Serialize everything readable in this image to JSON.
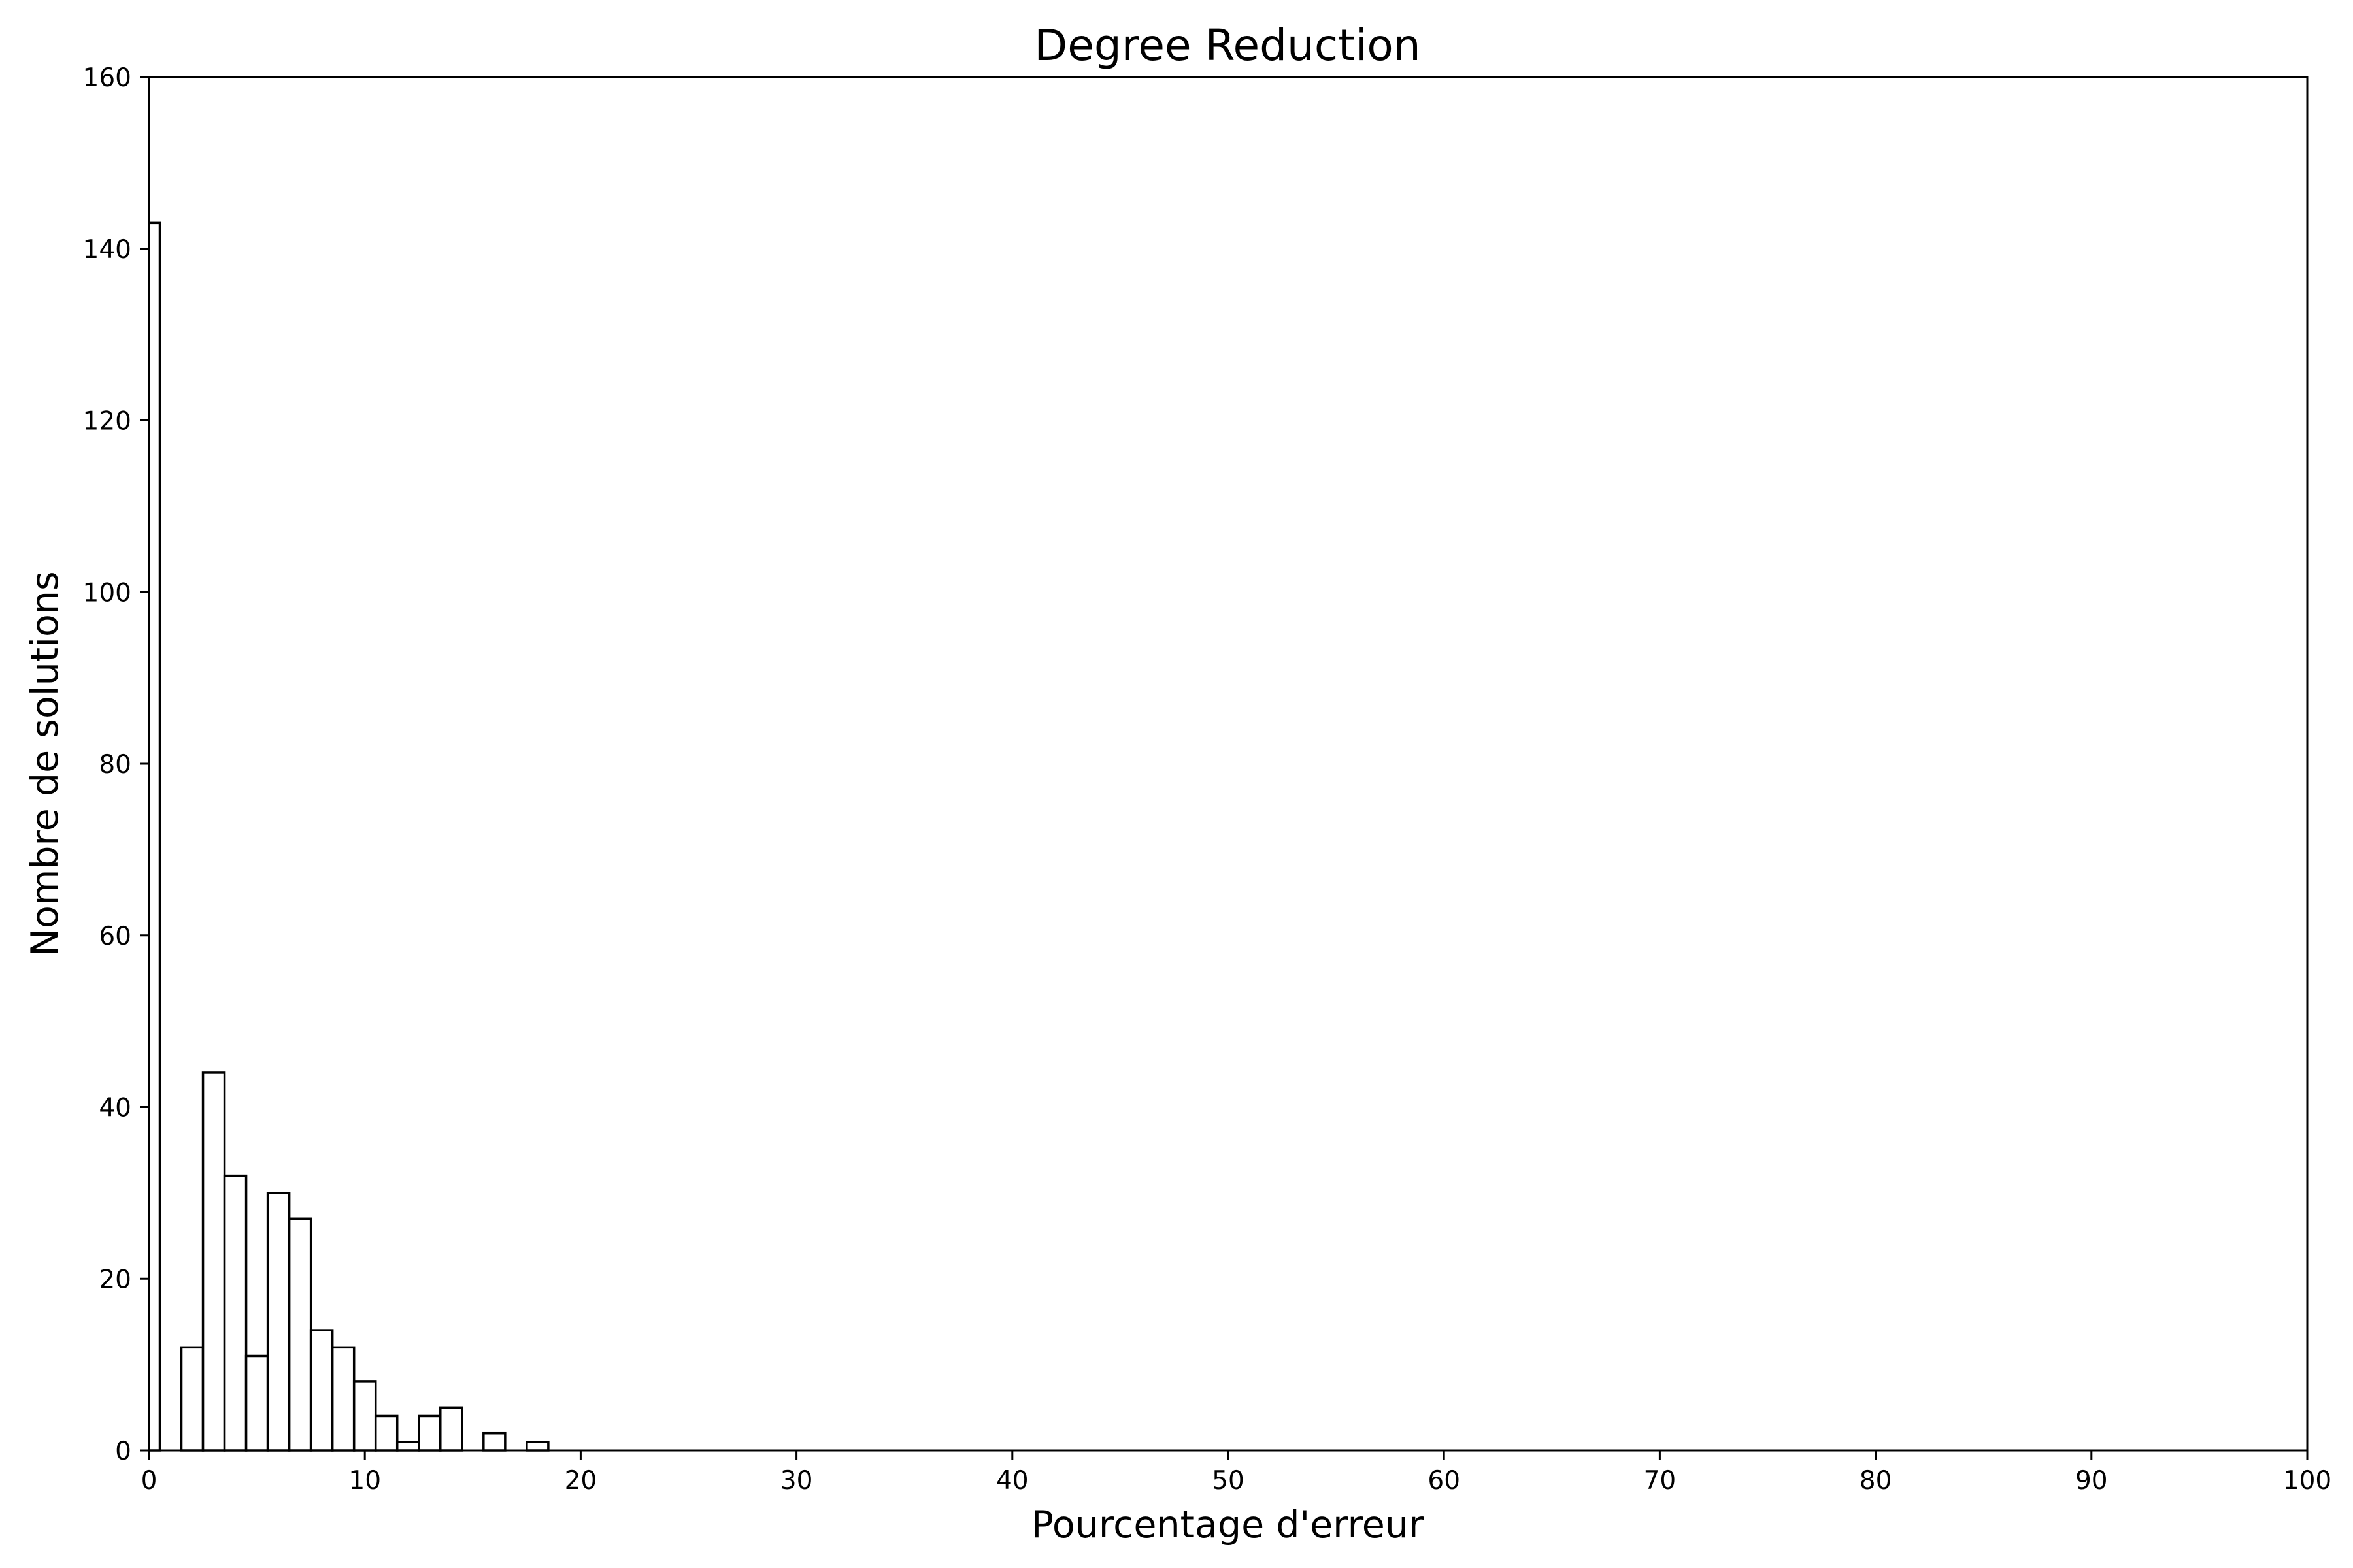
{
  "chart_data": {
    "type": "bar",
    "title": "Degree Reduction",
    "xlabel": "Pourcentage d'erreur",
    "ylabel": "Nombre de solutions",
    "xlim": [
      0,
      100
    ],
    "ylim": [
      0,
      160
    ],
    "xticks": [
      0,
      10,
      20,
      30,
      40,
      50,
      60,
      70,
      80,
      90,
      100
    ],
    "yticks": [
      0,
      20,
      40,
      60,
      80,
      100,
      120,
      140,
      160
    ],
    "grid": false,
    "bin_width": 1,
    "bins": [
      {
        "x0": 0,
        "x1": 0.5,
        "count": 143
      },
      {
        "x0": 1.5,
        "x1": 2.5,
        "count": 12
      },
      {
        "x0": 2.5,
        "x1": 3.5,
        "count": 44
      },
      {
        "x0": 3.5,
        "x1": 4.5,
        "count": 32
      },
      {
        "x0": 4.5,
        "x1": 5.5,
        "count": 11
      },
      {
        "x0": 5.5,
        "x1": 6.5,
        "count": 30
      },
      {
        "x0": 6.5,
        "x1": 7.5,
        "count": 27
      },
      {
        "x0": 7.5,
        "x1": 8.5,
        "count": 14
      },
      {
        "x0": 8.5,
        "x1": 9.5,
        "count": 12
      },
      {
        "x0": 9.5,
        "x1": 10.5,
        "count": 8
      },
      {
        "x0": 10.5,
        "x1": 11.5,
        "count": 4
      },
      {
        "x0": 11.5,
        "x1": 12.5,
        "count": 1
      },
      {
        "x0": 12.5,
        "x1": 13.5,
        "count": 4
      },
      {
        "x0": 13.5,
        "x1": 14.5,
        "count": 5
      },
      {
        "x0": 15.5,
        "x1": 16.5,
        "count": 2
      },
      {
        "x0": 17.5,
        "x1": 18.5,
        "count": 1
      }
    ],
    "colors": {
      "bar_fill": "#ffffff",
      "bar_edge": "#000000"
    }
  }
}
